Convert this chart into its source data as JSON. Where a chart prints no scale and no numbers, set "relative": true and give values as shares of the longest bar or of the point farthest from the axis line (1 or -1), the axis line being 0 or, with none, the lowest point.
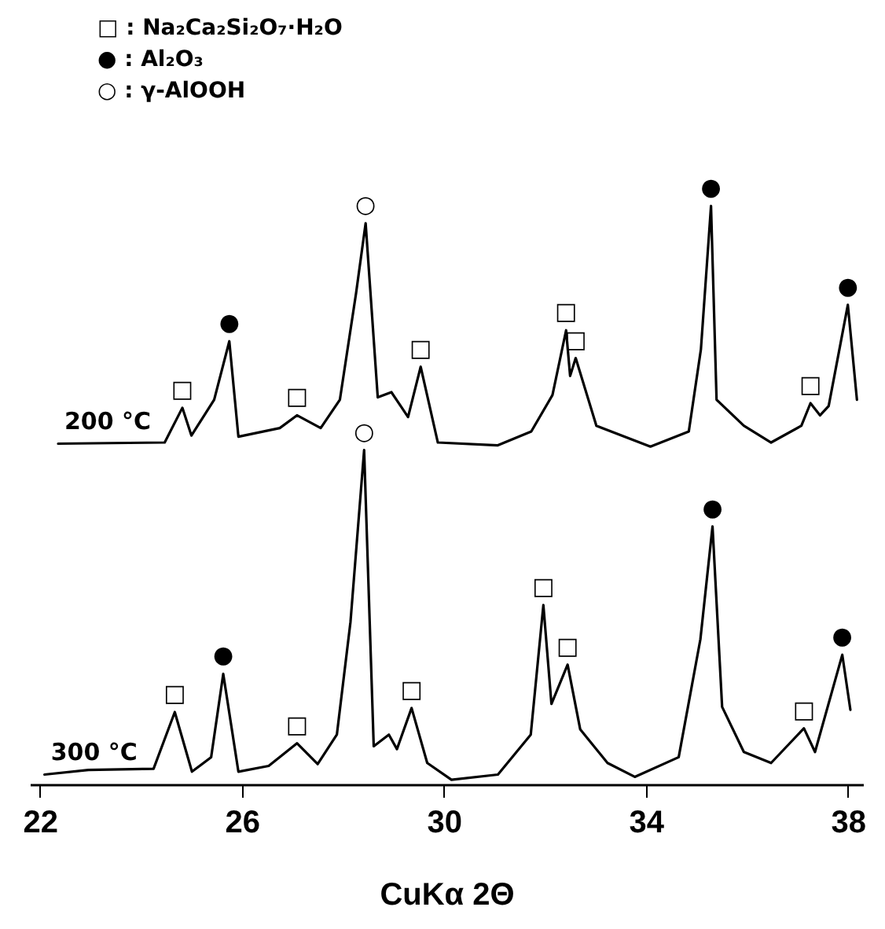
{
  "chart_data": {
    "type": "line",
    "relative": true,
    "xlabel": "CuKα 2Θ",
    "xlim": [
      21.8,
      38.3
    ],
    "xticks": [
      22,
      26,
      30,
      34,
      38
    ],
    "grid": false,
    "legend": false,
    "annotations": [
      "□ : Na₂Ca₂Si₂O₇·H₂O",
      "● : Al₂O₃",
      "○ : γ-AlOOH",
      {
        "text": "□",
        "x": 24.82,
        "y": 0.651
      },
      {
        "text": "●",
        "x": 25.75,
        "y": 0.766
      },
      {
        "text": "□",
        "x": 27.09,
        "y": 0.638
      },
      {
        "text": "○",
        "x": 28.45,
        "y": 0.97
      },
      {
        "text": "□",
        "x": 29.54,
        "y": 0.722
      },
      {
        "text": "□",
        "x": 32.42,
        "y": 0.785
      },
      {
        "text": "□",
        "x": 32.61,
        "y": 0.737
      },
      {
        "text": "●",
        "x": 35.29,
        "y": 1.0
      },
      {
        "text": "□",
        "x": 37.26,
        "y": 0.659
      },
      {
        "text": "●",
        "x": 38.0,
        "y": 0.829
      },
      {
        "text": "○",
        "x": 28.42,
        "y": 0.578
      },
      {
        "text": "□",
        "x": 24.67,
        "y": 0.125
      },
      {
        "text": "●",
        "x": 25.63,
        "y": 0.191
      },
      {
        "text": "□",
        "x": 27.09,
        "y": 0.071
      },
      {
        "text": "□",
        "x": 29.36,
        "y": 0.132
      },
      {
        "text": "□",
        "x": 31.97,
        "y": 0.31
      },
      {
        "text": "□",
        "x": 32.45,
        "y": 0.207
      },
      {
        "text": "●",
        "x": 35.32,
        "y": 0.446
      },
      {
        "text": "□",
        "x": 37.13,
        "y": 0.097
      },
      {
        "text": "●",
        "x": 37.89,
        "y": 0.224
      }
    ],
    "series": [
      {
        "name": "200 °C",
        "color": "#000000",
        "x": [
          22.36,
          24.47,
          24.82,
          25.0,
          25.45,
          25.75,
          25.93,
          26.75,
          27.09,
          27.56,
          27.94,
          28.26,
          28.45,
          28.69,
          28.96,
          29.29,
          29.54,
          29.88,
          31.06,
          31.73,
          32.15,
          32.42,
          32.5,
          32.61,
          33.02,
          34.09,
          34.85,
          35.09,
          35.29,
          35.4,
          35.94,
          36.48,
          37.08,
          37.26,
          37.45,
          37.62,
          38.0,
          38.18
        ],
        "values": [
          0.589,
          0.591,
          0.651,
          0.603,
          0.665,
          0.766,
          0.601,
          0.616,
          0.638,
          0.616,
          0.665,
          0.849,
          0.97,
          0.669,
          0.678,
          0.635,
          0.722,
          0.591,
          0.586,
          0.61,
          0.673,
          0.785,
          0.706,
          0.737,
          0.62,
          0.584,
          0.61,
          0.752,
          1.0,
          0.665,
          0.62,
          0.591,
          0.62,
          0.659,
          0.638,
          0.654,
          0.829,
          0.665
        ]
      },
      {
        "name": "300 °C",
        "color": "#000000",
        "x": [
          22.09,
          22.96,
          24.25,
          24.67,
          25.01,
          25.39,
          25.63,
          25.93,
          26.53,
          27.09,
          27.5,
          27.88,
          28.15,
          28.42,
          28.61,
          28.91,
          29.07,
          29.36,
          29.67,
          30.15,
          31.07,
          31.72,
          31.97,
          32.13,
          32.45,
          32.7,
          33.24,
          33.78,
          34.65,
          35.08,
          35.32,
          35.51,
          35.94,
          36.48,
          37.13,
          37.35,
          37.89,
          38.05
        ],
        "values": [
          0.017,
          0.025,
          0.027,
          0.125,
          0.022,
          0.047,
          0.191,
          0.022,
          0.032,
          0.071,
          0.035,
          0.086,
          0.281,
          0.578,
          0.066,
          0.086,
          0.061,
          0.132,
          0.037,
          0.008,
          0.017,
          0.086,
          0.31,
          0.139,
          0.207,
          0.095,
          0.037,
          0.013,
          0.047,
          0.251,
          0.446,
          0.134,
          0.056,
          0.037,
          0.097,
          0.056,
          0.224,
          0.129
        ]
      }
    ]
  }
}
